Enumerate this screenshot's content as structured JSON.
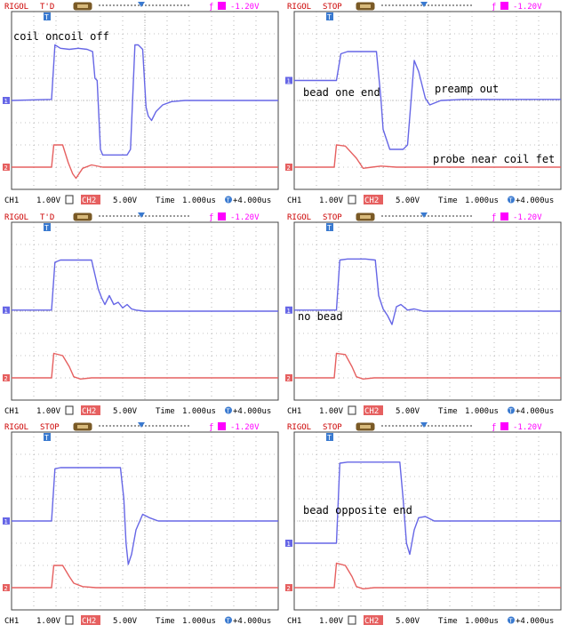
{
  "colors": {
    "ch1": "#6666e6",
    "ch2": "#e66060",
    "bar_text": "#cc0000",
    "trigger": "#ff00ff",
    "grid": "#000000"
  },
  "chart_data": [
    {
      "type": "line",
      "annotations": [
        "coil on",
        "coil off"
      ],
      "status": {
        "brand": "RIGOL",
        "state": "T'D",
        "trigger_level": "-1.20V"
      },
      "footer": {
        "ch1": "CH1",
        "ch1_scale": "1.00V",
        "ch2": "CH2",
        "ch2_scale": "5.00V",
        "time_label": "Time",
        "time_scale": "1.000us",
        "delay": "+4.000us"
      },
      "grid": true,
      "xlim": [
        -1.6,
        10.4
      ],
      "ylim": [
        -4,
        4
      ],
      "series": [
        {
          "channel": "CH1",
          "x": [
            -1.6,
            0.2,
            0.35,
            0.6,
            1.0,
            1.4,
            1.8,
            2.05,
            2.15,
            2.25,
            2.4,
            2.5,
            3.6,
            3.75,
            3.95,
            4.1,
            4.3,
            4.45,
            4.55,
            4.7,
            4.9,
            5.2,
            5.6,
            6.2,
            10.4
          ],
          "y": [
            0.0,
            0.05,
            2.5,
            2.35,
            2.3,
            2.35,
            2.3,
            2.2,
            1.0,
            0.9,
            -2.2,
            -2.45,
            -2.45,
            -2.2,
            2.5,
            2.5,
            2.3,
            -0.3,
            -0.7,
            -0.9,
            -0.5,
            -0.2,
            -0.05,
            0.0,
            0.0
          ]
        },
        {
          "channel": "CH2",
          "x": [
            -1.6,
            0.2,
            0.3,
            0.7,
            0.95,
            1.15,
            1.3,
            1.6,
            2.0,
            2.5,
            10.4
          ],
          "y": [
            -3.0,
            -3.0,
            -2.0,
            -2.0,
            -2.8,
            -3.3,
            -3.5,
            -3.05,
            -2.9,
            -3.0,
            -3.0
          ]
        }
      ]
    },
    {
      "type": "line",
      "annotations": [
        "bead one end",
        "preamp out",
        "probe near coil fet"
      ],
      "status": {
        "brand": "RIGOL",
        "state": "STOP",
        "trigger_level": "-1.20V"
      },
      "footer": {
        "ch1": "CH1",
        "ch1_scale": "1.00V",
        "ch2": "CH2",
        "ch2_scale": "5.00V",
        "time_label": "Time",
        "time_scale": "1.000us",
        "delay": "+4.000us"
      },
      "grid": true,
      "xlim": [
        -1.6,
        10.4
      ],
      "ylim": [
        -4,
        4
      ],
      "series": [
        {
          "channel": "CH1",
          "x": [
            -1.6,
            0.3,
            0.5,
            0.8,
            1.2,
            1.6,
            2.1,
            2.3,
            2.4,
            2.7,
            3.3,
            3.5,
            3.8,
            4.0,
            4.3,
            4.5,
            5.0,
            6.0,
            10.4
          ],
          "y": [
            0.9,
            0.9,
            2.1,
            2.2,
            2.2,
            2.2,
            2.2,
            0.1,
            -1.3,
            -2.2,
            -2.2,
            -2.0,
            1.8,
            1.3,
            0.1,
            -0.2,
            0.0,
            0.05,
            0.05
          ]
        },
        {
          "channel": "CH2",
          "x": [
            -1.6,
            0.2,
            0.3,
            0.7,
            1.2,
            1.5,
            1.9,
            2.3,
            3.0,
            10.4
          ],
          "y": [
            -3.0,
            -3.0,
            -2.0,
            -2.05,
            -2.6,
            -3.05,
            -3.0,
            -2.95,
            -3.0,
            -3.0
          ]
        }
      ]
    },
    {
      "type": "line",
      "annotations": [],
      "status": {
        "brand": "RIGOL",
        "state": "T'D",
        "trigger_level": "-1.20V"
      },
      "footer": {
        "ch1": "CH1",
        "ch1_scale": "1.00V",
        "ch2": "CH2",
        "ch2_scale": "5.00V",
        "time_label": "Time",
        "time_scale": "1.000us",
        "delay": "+4.000us"
      },
      "grid": true,
      "xlim": [
        -1.6,
        10.4
      ],
      "ylim": [
        -4,
        4
      ],
      "series": [
        {
          "channel": "CH1",
          "x": [
            -1.6,
            0.2,
            0.35,
            0.6,
            1.0,
            1.5,
            2.0,
            2.3,
            2.45,
            2.6,
            2.8,
            3.0,
            3.2,
            3.4,
            3.6,
            3.8,
            4.0,
            4.4,
            10.4
          ],
          "y": [
            0.05,
            0.05,
            2.2,
            2.3,
            2.3,
            2.3,
            2.3,
            1.0,
            0.6,
            0.3,
            0.7,
            0.3,
            0.4,
            0.15,
            0.3,
            0.1,
            0.05,
            0.0,
            0.0
          ]
        },
        {
          "channel": "CH2",
          "x": [
            -1.6,
            0.2,
            0.3,
            0.7,
            1.0,
            1.2,
            1.5,
            2.0,
            10.4
          ],
          "y": [
            -3.0,
            -3.0,
            -1.9,
            -2.0,
            -2.5,
            -2.95,
            -3.05,
            -3.0,
            -3.0
          ]
        }
      ]
    },
    {
      "type": "line",
      "annotations": [
        "no bead"
      ],
      "status": {
        "brand": "RIGOL",
        "state": "STOP",
        "trigger_level": "-1.20V"
      },
      "footer": {
        "ch1": "CH1",
        "ch1_scale": "1.00V",
        "ch2": "CH2",
        "ch2_scale": "5.00V",
        "time_label": "Time",
        "time_scale": "1.000us",
        "delay": "+4.000us"
      },
      "grid": true,
      "xlim": [
        -1.6,
        10.4
      ],
      "ylim": [
        -4,
        4
      ],
      "series": [
        {
          "channel": "CH1",
          "x": [
            -1.6,
            0.3,
            0.45,
            0.8,
            1.2,
            1.6,
            2.05,
            2.2,
            2.4,
            2.6,
            2.8,
            3.0,
            3.2,
            3.5,
            3.8,
            4.2,
            10.4
          ],
          "y": [
            0.05,
            0.05,
            2.3,
            2.35,
            2.35,
            2.35,
            2.3,
            0.7,
            0.1,
            -0.2,
            -0.6,
            0.2,
            0.3,
            0.05,
            0.1,
            0.0,
            0.0
          ]
        },
        {
          "channel": "CH2",
          "x": [
            -1.6,
            0.2,
            0.3,
            0.7,
            1.0,
            1.2,
            1.5,
            2.0,
            10.4
          ],
          "y": [
            -3.0,
            -3.0,
            -1.9,
            -1.95,
            -2.5,
            -2.95,
            -3.05,
            -3.0,
            -3.0
          ]
        }
      ]
    },
    {
      "type": "line",
      "annotations": [],
      "status": {
        "brand": "RIGOL",
        "state": "STOP",
        "trigger_level": "-1.20V"
      },
      "footer": {
        "ch1": "CH1",
        "ch1_scale": "1.00V",
        "ch2": "CH2",
        "ch2_scale": "5.00V",
        "time_label": "Time",
        "time_scale": "1.000us",
        "delay": "+4.000us"
      },
      "grid": true,
      "xlim": [
        -1.6,
        10.4
      ],
      "ylim": [
        -4,
        4
      ],
      "series": [
        {
          "channel": "CH1",
          "x": [
            -1.6,
            0.2,
            0.35,
            0.6,
            1.0,
            1.4,
            1.8,
            2.2,
            2.6,
            3.0,
            3.3,
            3.45,
            3.55,
            3.65,
            3.8,
            4.0,
            4.3,
            4.6,
            5.0,
            5.5,
            10.4
          ],
          "y": [
            0.0,
            0.0,
            2.35,
            2.4,
            2.4,
            2.4,
            2.4,
            2.4,
            2.4,
            2.4,
            2.4,
            1.0,
            -1.0,
            -1.95,
            -1.5,
            -0.4,
            0.3,
            0.15,
            0.0,
            0.0,
            0.0
          ]
        },
        {
          "channel": "CH2",
          "x": [
            -1.6,
            0.2,
            0.3,
            0.7,
            1.0,
            1.2,
            1.6,
            2.2,
            10.4
          ],
          "y": [
            -3.0,
            -3.0,
            -2.0,
            -2.0,
            -2.5,
            -2.8,
            -2.95,
            -3.0,
            -3.0
          ]
        }
      ]
    },
    {
      "type": "line",
      "annotations": [
        "bead opposite end"
      ],
      "status": {
        "brand": "RIGOL",
        "state": "STOP",
        "trigger_level": "-1.20V"
      },
      "footer": {
        "ch1": "CH1",
        "ch1_scale": "1.00V",
        "ch2": "CH2",
        "ch2_scale": "5.00V",
        "time_label": "Time",
        "time_scale": "1.000us",
        "delay": "+4.000us"
      },
      "grid": true,
      "xlim": [
        -1.6,
        10.4
      ],
      "ylim": [
        -4,
        4
      ],
      "series": [
        {
          "channel": "CH1",
          "x": [
            -1.6,
            0.3,
            0.45,
            0.8,
            1.2,
            1.6,
            2.0,
            2.4,
            2.8,
            3.15,
            3.3,
            3.45,
            3.6,
            3.8,
            4.0,
            4.3,
            4.7,
            5.2,
            10.4
          ],
          "y": [
            -1.0,
            -1.0,
            2.6,
            2.65,
            2.65,
            2.65,
            2.65,
            2.65,
            2.65,
            2.65,
            1.0,
            -1.0,
            -1.5,
            -0.4,
            0.15,
            0.2,
            0.0,
            0.0,
            0.0
          ]
        },
        {
          "channel": "CH2",
          "x": [
            -1.6,
            0.2,
            0.3,
            0.7,
            1.0,
            1.2,
            1.5,
            2.0,
            10.4
          ],
          "y": [
            -3.0,
            -3.0,
            -1.9,
            -2.0,
            -2.5,
            -2.95,
            -3.05,
            -3.0,
            -3.0
          ]
        }
      ]
    }
  ]
}
